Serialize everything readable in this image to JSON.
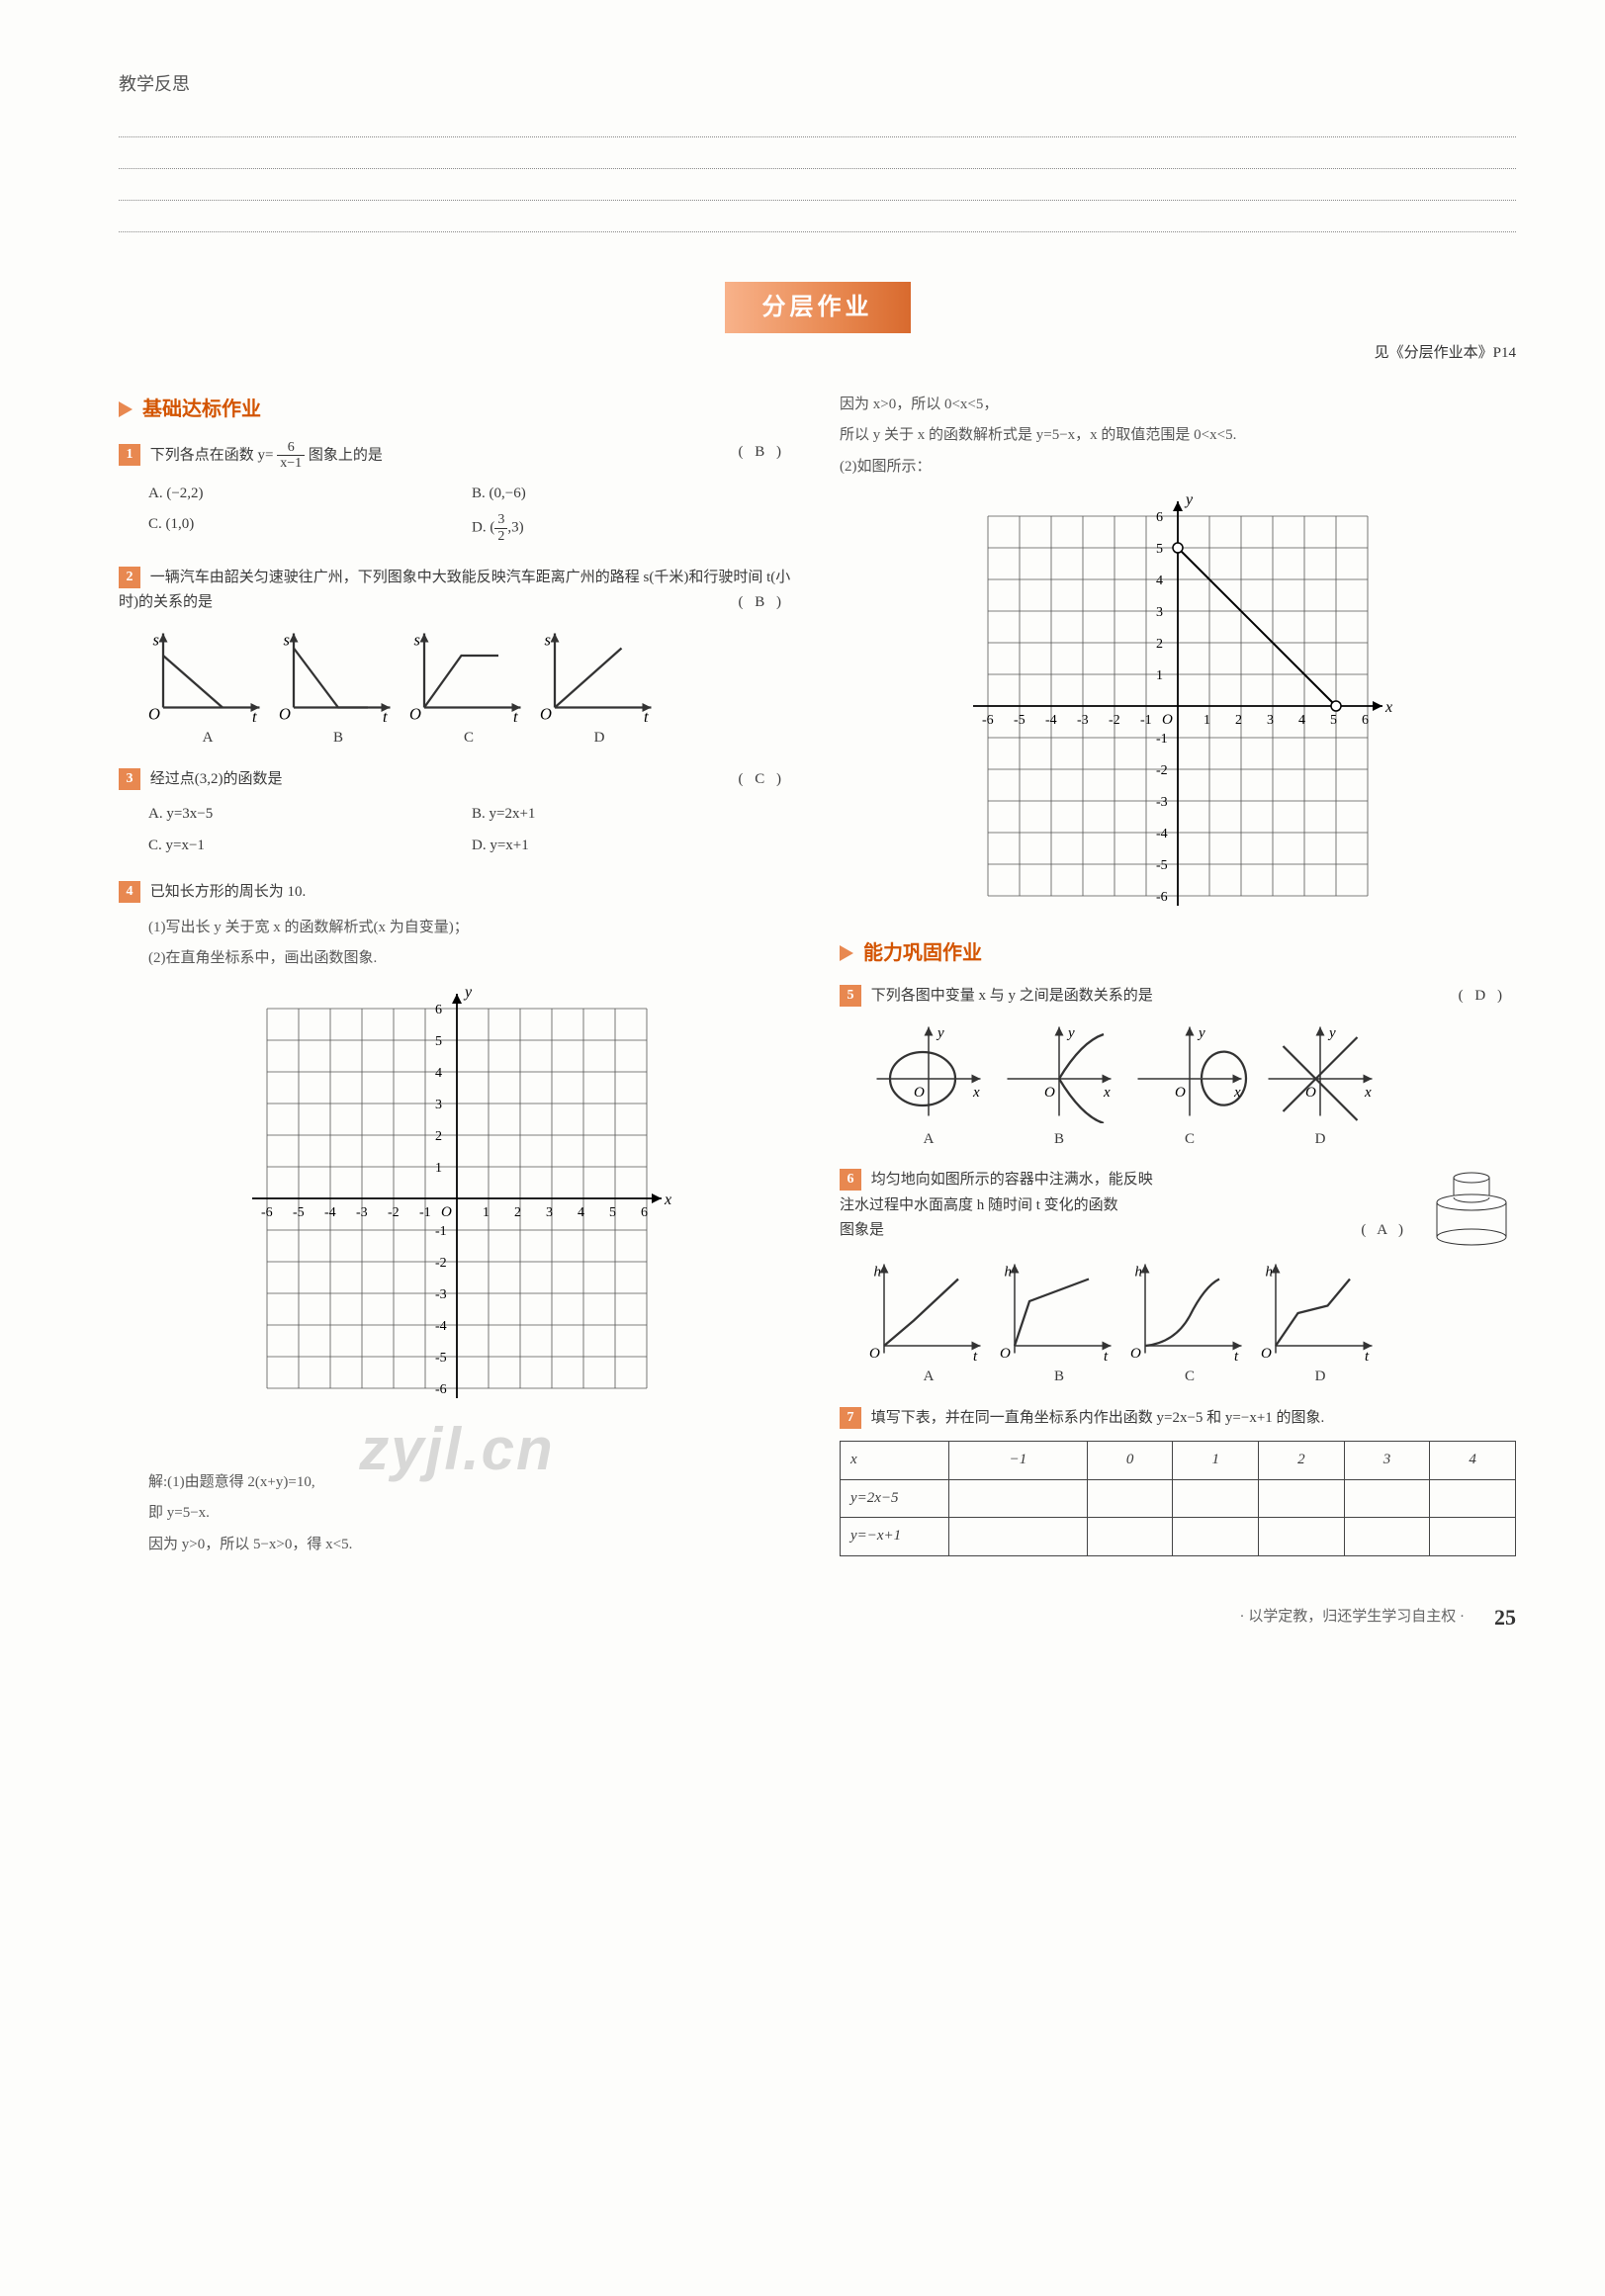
{
  "header": {
    "title": "教学反思"
  },
  "banner": {
    "label": "分层作业"
  },
  "ref": "见《分层作业本》P14",
  "sec1": {
    "title": "基础达标作业"
  },
  "sec2": {
    "title": "能力巩固作业"
  },
  "q1": {
    "text_a": "下列各点在函数 ",
    "text_b": " 图象上的是",
    "frac_num": "6",
    "frac_den": "x−1",
    "prefix": "y=",
    "ans": "( B )",
    "A": "A. (−2,2)",
    "B": "B. (0,−6)",
    "C": "C. (1,0)",
    "D_pre": "D. (",
    "D_num": "3",
    "D_den": "2",
    "D_post": ",3)"
  },
  "q2": {
    "text": "一辆汽车由韶关匀速驶往广州，下列图象中大致能反映汽车距离广州的路程 s(千米)和行驶时间 t(小时)的关系的是",
    "ans": "( B )",
    "labels": {
      "A": "A",
      "B": "B",
      "C": "C",
      "D": "D"
    }
  },
  "q3": {
    "text": "经过点(3,2)的函数是",
    "ans": "( C )",
    "A": "A. y=3x−5",
    "B": "B. y=2x+1",
    "C": "C. y=x−1",
    "D": "D. y=x+1"
  },
  "q4": {
    "text": "已知长方形的周长为 10.",
    "p1": "(1)写出长 y 关于宽 x 的函数解析式(x 为自变量)；",
    "p2": "(2)在直角坐标系中，画出函数图象.",
    "sol1": "解:(1)由题意得 2(x+y)=10,",
    "sol2": "即 y=5−x.",
    "sol3": "因为 y>0，所以 5−x>0，得 x<5."
  },
  "col2_intro": {
    "l1": "因为 x>0，所以 0<x<5，",
    "l2": "所以 y 关于 x 的函数解析式是 y=5−x，x 的取值范围是 0<x<5.",
    "l3": "(2)如图所示："
  },
  "q5": {
    "text": "下列各图中变量 x 与 y 之间是函数关系的是",
    "ans": "( D )",
    "labels": {
      "A": "A",
      "B": "B",
      "C": "C",
      "D": "D"
    }
  },
  "q6": {
    "text1": "均匀地向如图所示的容器中注满水，能反映",
    "text2": "注水过程中水面高度 h 随时间 t 变化的函数",
    "text3": "图象是",
    "ans": "( A )",
    "labels": {
      "A": "A",
      "B": "B",
      "C": "C",
      "D": "D"
    }
  },
  "q7": {
    "text": "填写下表，并在同一直角坐标系内作出函数 y=2x−5 和 y=−x+1 的图象.",
    "table": {
      "headers": [
        "x",
        "−1",
        "0",
        "1",
        "2",
        "3",
        "4"
      ],
      "row1": "y=2x−5",
      "row2": "y=−x+1"
    }
  },
  "watermark": "zyjl.cn",
  "footer": {
    "motto": "· 以学定教，归还学生学习自主权 ·",
    "page": "25"
  },
  "colors": {
    "accent": "#e88850",
    "accent_dark": "#d35400",
    "text": "#3a3a3a",
    "grid": "#555"
  },
  "grid": {
    "xrange": [
      -6,
      6
    ],
    "yrange": [
      -6,
      6
    ],
    "xticks": [
      "-6",
      "-5",
      "-4",
      "-3",
      "-2",
      "-1",
      "O",
      "1",
      "2",
      "3",
      "4",
      "5",
      "6"
    ],
    "yticks": [
      "-6",
      "-5",
      "-4",
      "-3",
      "-2",
      "-1",
      "1",
      "2",
      "3",
      "4",
      "5",
      "6"
    ]
  },
  "q4_plot": {
    "line": {
      "x1": 0,
      "y1": 5,
      "x2": 5,
      "y2": 0
    },
    "open_pts": [
      [
        0,
        5
      ],
      [
        5,
        0
      ]
    ]
  }
}
